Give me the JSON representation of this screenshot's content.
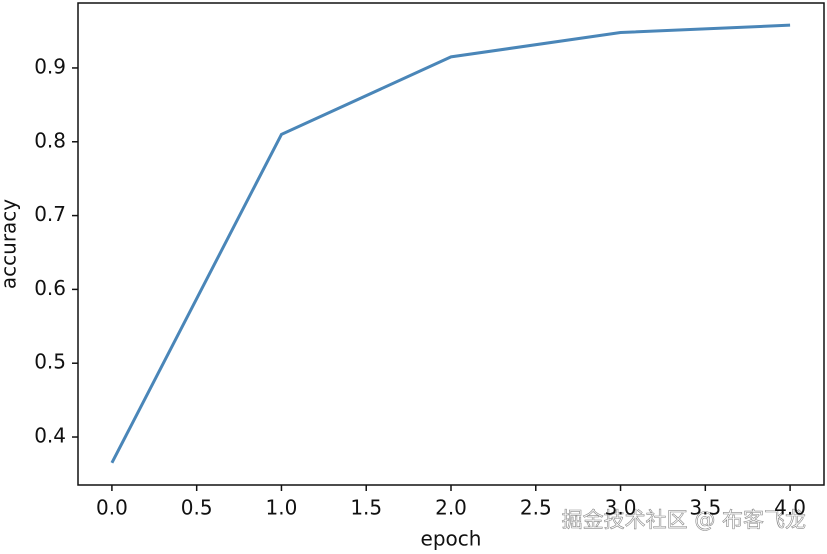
{
  "chart_data": {
    "type": "line",
    "x": [
      0,
      1,
      2,
      3,
      4
    ],
    "values": [
      0.365,
      0.81,
      0.915,
      0.948,
      0.958
    ],
    "color": "#4a86b8",
    "xlabel": "epoch",
    "ylabel": "accuracy",
    "xlim": [
      -0.2,
      4.2
    ],
    "xticks": [
      {
        "value": 0,
        "label": "0.0"
      },
      {
        "value": 0.5,
        "label": "0.5"
      },
      {
        "value": 1,
        "label": "1.0"
      },
      {
        "value": 1.5,
        "label": "1.5"
      },
      {
        "value": 2,
        "label": "2.0"
      },
      {
        "value": 2.5,
        "label": "2.5"
      },
      {
        "value": 3,
        "label": "3.0"
      },
      {
        "value": 3.5,
        "label": "3.5"
      },
      {
        "value": 4,
        "label": "4.0"
      }
    ],
    "ylim": [
      0.335,
      0.988
    ],
    "yticks": [
      0.4,
      0.5,
      0.6,
      0.7,
      0.8,
      0.9
    ],
    "grid": false,
    "watermark": "掘金技术社区 @ 布客飞龙"
  }
}
